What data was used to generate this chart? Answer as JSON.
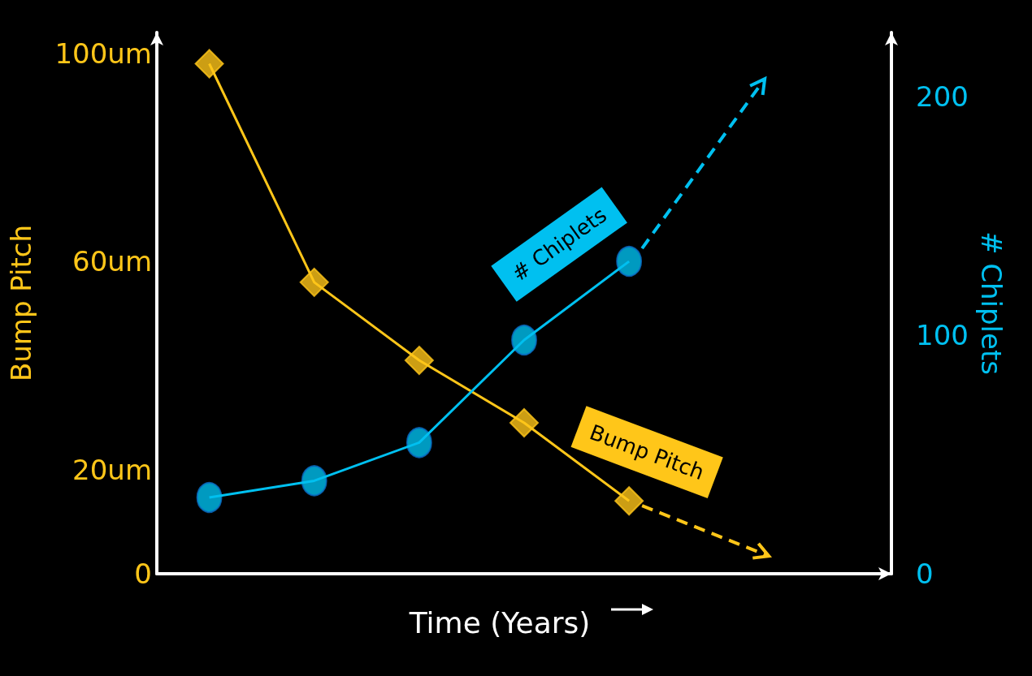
{
  "chart_data": {
    "type": "line",
    "xlabel": "Time (Years)",
    "ylabel": "Bump Pitch",
    "y2label": "# Chiplets",
    "categories": [
      null,
      null,
      null,
      null,
      null,
      null,
      null
    ],
    "ylim": [
      0,
      104
    ],
    "yticks": [
      0,
      {
        "value": 20,
        "label": "20um"
      },
      {
        "value": 60,
        "label": "60um"
      },
      {
        "value": 100,
        "label": "100um"
      }
    ],
    "y2lim": [
      0,
      227
    ],
    "y2ticks": [
      0,
      100,
      200
    ],
    "series": [
      {
        "name": "Bump Pitch",
        "color": "#ffc619",
        "marker": "diamond",
        "values": [
          98,
          56,
          41,
          29,
          14,
          null,
          null
        ]
      },
      {
        "name": "# Chiplets",
        "color": "#00c0f0",
        "marker": "circle",
        "axis": "y2",
        "values": [
          32,
          39,
          55,
          98,
          131,
          null,
          null
        ]
      }
    ]
  }
}
